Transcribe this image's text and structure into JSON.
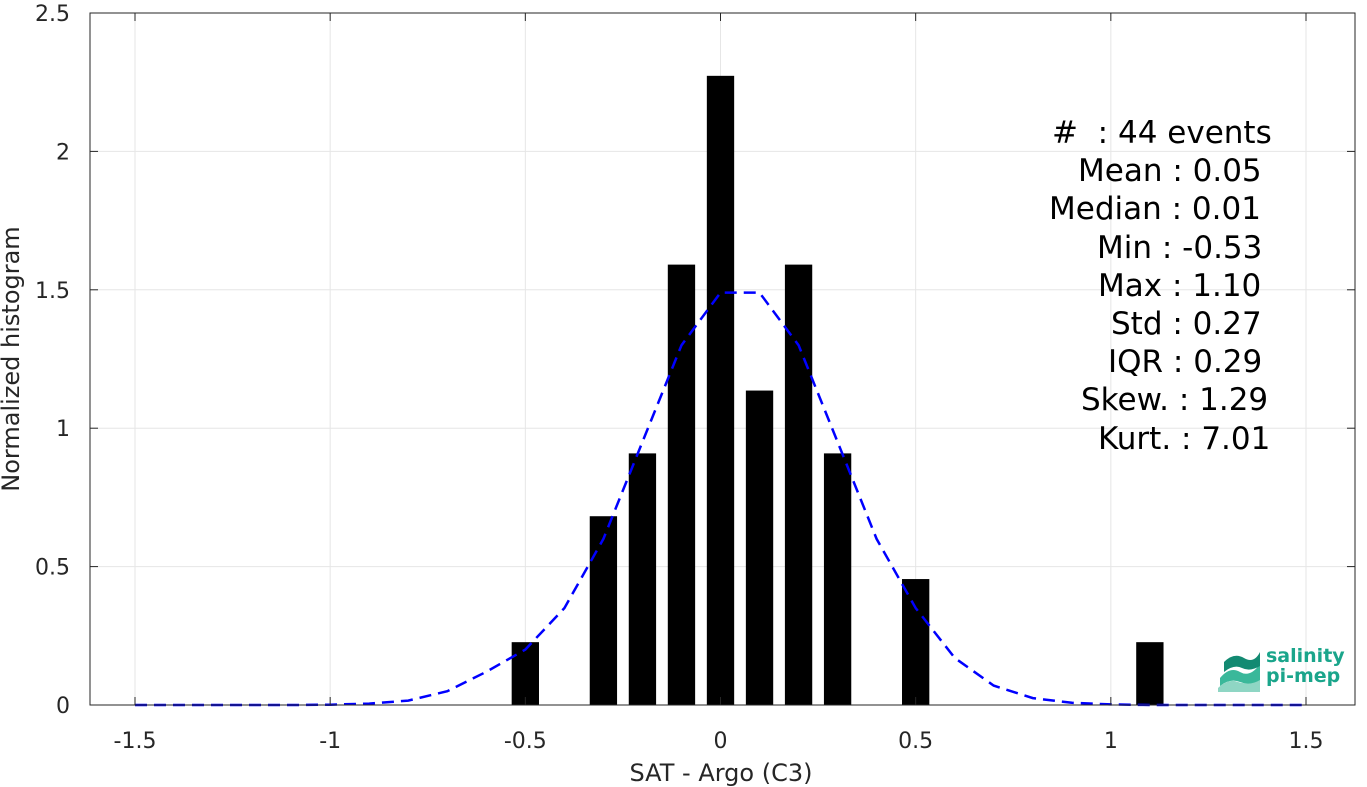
{
  "chart_data": {
    "type": "bar",
    "xlabel": "SAT - Argo (C3)",
    "ylabel": "Normalized histogram",
    "xlim": [
      -1.5,
      1.5
    ],
    "ylim": [
      0,
      2.5
    ],
    "xticks": [
      "-1.5",
      "-1",
      "-0.5",
      "0",
      "0.5",
      "1",
      "1.5"
    ],
    "xtick_values": [
      -1.5,
      -1,
      -0.5,
      0,
      0.5,
      1,
      1.5
    ],
    "yticks": [
      "0",
      "0.5",
      "1",
      "1.5",
      "2",
      "2.5"
    ],
    "ytick_values": [
      0,
      0.5,
      1,
      1.5,
      2,
      2.5
    ],
    "grid": true,
    "bin_width": 0.07,
    "bars": {
      "x": [
        -0.5,
        -0.3,
        -0.2,
        -0.1,
        0.0,
        0.1,
        0.2,
        0.3,
        0.5,
        1.1
      ],
      "values": [
        0.227,
        0.682,
        0.909,
        1.591,
        2.273,
        1.136,
        1.591,
        0.909,
        0.455,
        0.227
      ],
      "color": "#000000"
    },
    "fit_curve": {
      "style": "dashed",
      "color": "#0000ff",
      "x": [
        -1.5,
        -1.4,
        -1.3,
        -1.2,
        -1.1,
        -1.0,
        -0.9,
        -0.8,
        -0.7,
        -0.6,
        -0.5,
        -0.4,
        -0.3,
        -0.2,
        -0.1,
        0.0,
        0.1,
        0.2,
        0.3,
        0.4,
        0.5,
        0.6,
        0.7,
        0.8,
        0.9,
        1.0,
        1.1,
        1.2,
        1.3,
        1.4,
        1.5
      ],
      "values": [
        0.0,
        0.0,
        0.0,
        0.0,
        0.0,
        0.001,
        0.005,
        0.016,
        0.05,
        0.12,
        0.2,
        0.35,
        0.6,
        0.95,
        1.3,
        1.49,
        1.49,
        1.3,
        0.95,
        0.6,
        0.35,
        0.17,
        0.07,
        0.025,
        0.008,
        0.002,
        0.0,
        0.0,
        0.0,
        0.0,
        0.0
      ]
    },
    "annotations": [
      "#  : 44 events",
      "Mean : 0.05",
      "Median : 0.01",
      "Min : -0.53",
      "Max : 1.10",
      "Std : 0.27",
      "IQR : 0.29",
      "Skew. : 1.29",
      "Kurt. : 7.01"
    ]
  },
  "logo": {
    "line1": "salinity",
    "line2": "pi-mep",
    "color": "#1aa58b"
  }
}
